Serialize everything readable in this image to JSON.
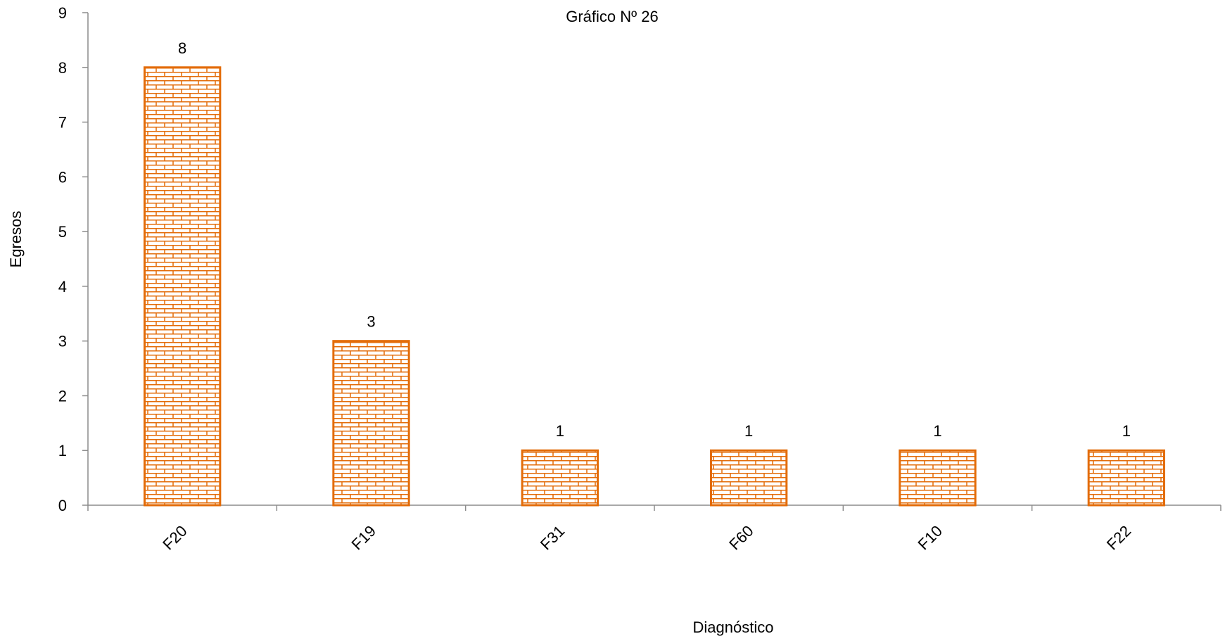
{
  "chart_data": {
    "type": "bar",
    "title": "Gráfico Nº 26",
    "xlabel": "Diagnóstico",
    "ylabel": "Egresos",
    "categories": [
      "F20",
      "F19",
      "F31",
      "F60",
      "F10",
      "F22"
    ],
    "values": [
      8,
      3,
      1,
      1,
      1,
      1
    ],
    "data_labels": [
      "8",
      "3",
      "1",
      "1",
      "1",
      "1"
    ],
    "ylim": [
      0,
      9
    ],
    "yticks": [
      "0",
      "1",
      "2",
      "3",
      "4",
      "5",
      "6",
      "7",
      "8",
      "9"
    ],
    "grid": false,
    "legend": "none",
    "bar_color": "#E36C09",
    "bar_pattern": "brick"
  }
}
